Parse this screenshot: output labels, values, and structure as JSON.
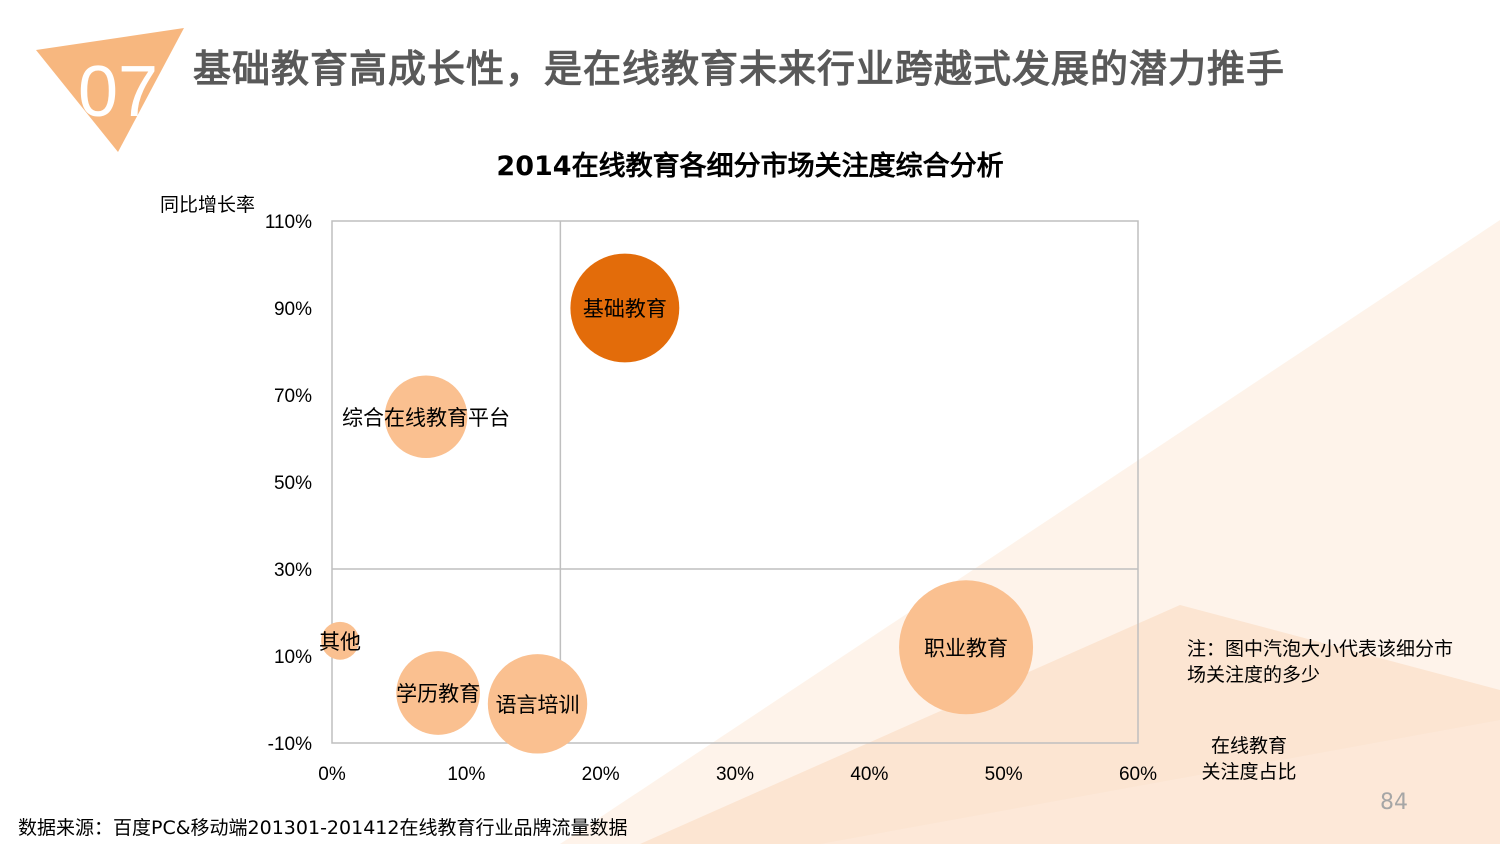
{
  "header": {
    "section_number": "07",
    "title": "基础教育高成长性，是在线教育未来行业跨越式发展的潜力推手"
  },
  "chart_data": {
    "type": "bubble",
    "title": "2014在线教育各细分市场关注度综合分析",
    "ylabel": "同比增长率",
    "xlabel_lines": [
      "在线教育",
      "关注度占比"
    ],
    "xlim": [
      0,
      60
    ],
    "ylim": [
      -10,
      110
    ],
    "xticks": [
      0,
      10,
      20,
      30,
      40,
      50,
      60
    ],
    "yticks": [
      -10,
      10,
      30,
      50,
      70,
      90,
      110
    ],
    "xtick_labels": [
      "0%",
      "10%",
      "20%",
      "30%",
      "40%",
      "50%",
      "60%"
    ],
    "ytick_labels": [
      "-10%",
      "10%",
      "30%",
      "50%",
      "70%",
      "90%",
      "110%"
    ],
    "quadrant_lines": {
      "x": 17,
      "y": 30
    },
    "series": [
      {
        "name": "基础教育",
        "x": 21.8,
        "y": 90,
        "size": 6.6,
        "color": "#e36c0a"
      },
      {
        "name": "综合在线教育平台",
        "x": 7,
        "y": 65,
        "size": 3.8,
        "color": "#fac090"
      },
      {
        "name": "其他",
        "x": 0.6,
        "y": 13.5,
        "size": 0.8,
        "color": "#fac090"
      },
      {
        "name": "学历教育",
        "x": 7.9,
        "y": 1.5,
        "size": 3.9,
        "color": "#fac090"
      },
      {
        "name": "语言培训",
        "x": 15.3,
        "y": -1,
        "size": 5.5,
        "color": "#fac090"
      },
      {
        "name": "职业教育",
        "x": 47.2,
        "y": 12,
        "size": 10,
        "color": "#fac090"
      }
    ]
  },
  "note": "注：图中汽泡大小代表该细分市场关注度的多少",
  "page_number": "84",
  "source": "数据来源：百度PC&移动端201301-201412在线教育行业品牌流量数据"
}
